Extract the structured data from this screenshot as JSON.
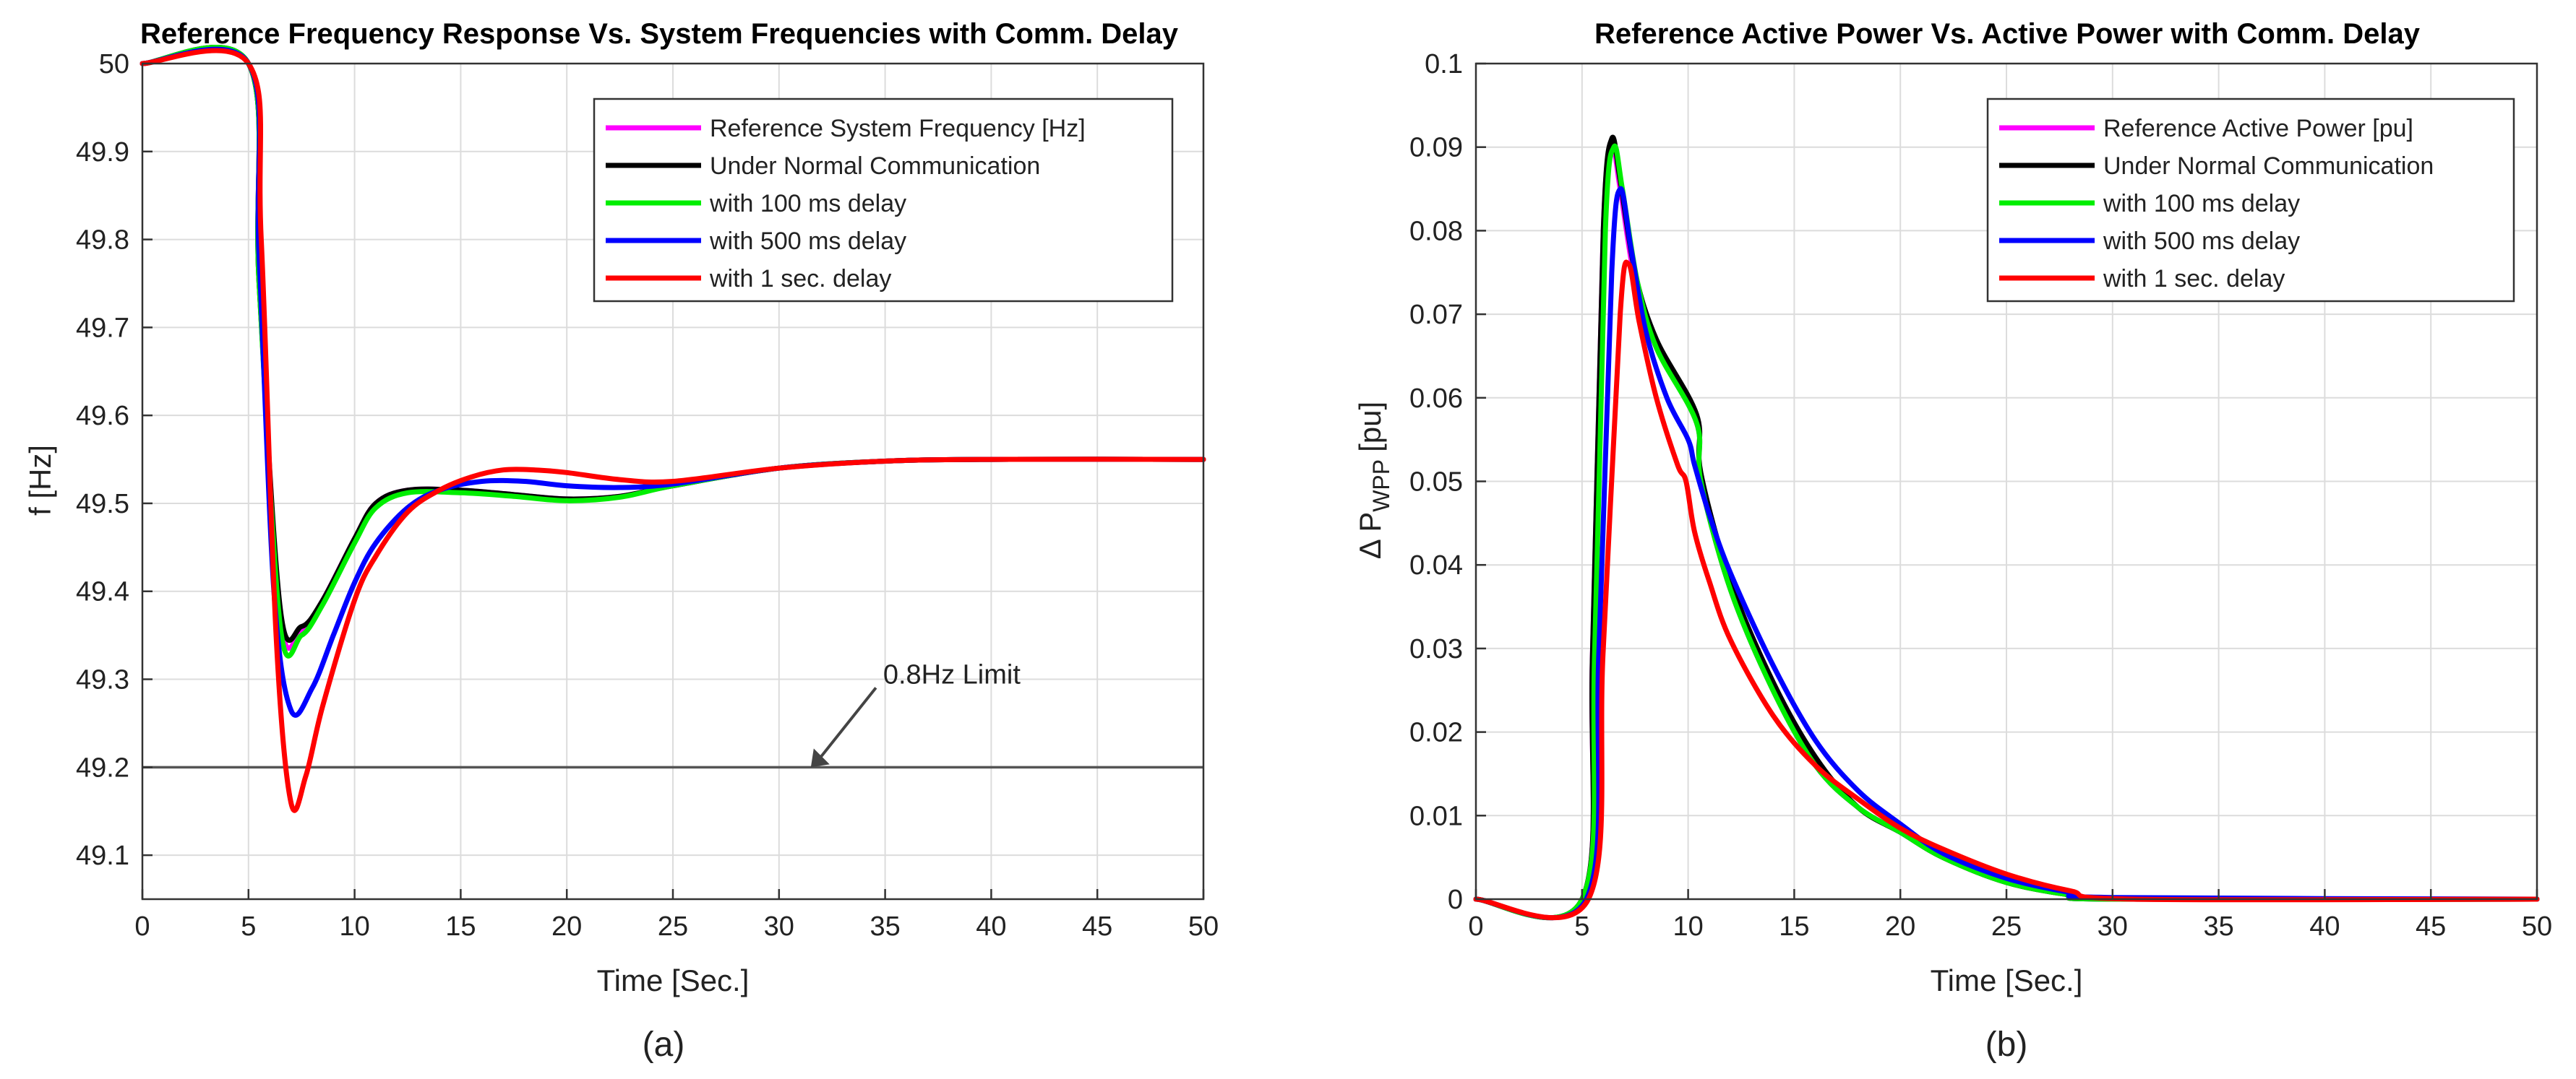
{
  "chart_data": [
    {
      "type": "line",
      "panel_label": "(a)",
      "title": "Reference Frequency Response Vs. System Frequencies with Comm. Delay",
      "xlabel": "Time [Sec.]",
      "ylabel": "f [Hz]",
      "xlim": [
        0,
        50
      ],
      "ylim": [
        49.05,
        50
      ],
      "xticks": [
        0,
        5,
        10,
        15,
        20,
        25,
        30,
        35,
        40,
        45,
        50
      ],
      "yticks": [
        49.1,
        49.2,
        49.3,
        49.4,
        49.5,
        49.6,
        49.7,
        49.8,
        49.9,
        50
      ],
      "ytick_labels": [
        "49.1",
        "49.2",
        "49.3",
        "49.4",
        "49.5",
        "49.6",
        "49.7",
        "49.8",
        "49.9",
        "50"
      ],
      "grid": true,
      "legend_position": "top-right",
      "reference_line": {
        "y": 49.2,
        "color": "#555555"
      },
      "annotation": {
        "text": "0.8Hz Limit",
        "x": 31.5,
        "y": 49.2
      },
      "series": [
        {
          "name": "Reference System Frequency [Hz]",
          "color": "#ff00ff",
          "x": [
            0,
            5,
            5.5,
            6.5,
            7.5,
            8.5,
            10,
            11,
            12.5,
            15,
            17.5,
            20,
            22.5,
            25,
            30,
            35,
            40,
            50
          ],
          "y": [
            50,
            50,
            49.75,
            49.37,
            49.355,
            49.39,
            49.46,
            49.5,
            49.515,
            49.515,
            49.51,
            49.505,
            49.508,
            49.52,
            49.54,
            49.548,
            49.55,
            49.55
          ]
        },
        {
          "name": "Under Normal Communication",
          "color": "#000000",
          "x": [
            0,
            5,
            5.5,
            6.5,
            7.5,
            8.5,
            10,
            11,
            12.5,
            15,
            17.5,
            20,
            22.5,
            25,
            30,
            35,
            40,
            50
          ],
          "y": [
            50,
            50,
            49.75,
            49.38,
            49.36,
            49.39,
            49.46,
            49.5,
            49.515,
            49.515,
            49.51,
            49.505,
            49.508,
            49.52,
            49.54,
            49.548,
            49.55,
            49.55
          ]
        },
        {
          "name": "with 100 ms delay",
          "color": "#00ee00",
          "x": [
            0,
            5,
            5.5,
            6.5,
            7.5,
            8.5,
            10,
            11,
            12.5,
            15,
            17.5,
            20,
            22.5,
            25,
            30,
            35,
            40,
            50
          ],
          "y": [
            50,
            50,
            49.75,
            49.36,
            49.35,
            49.385,
            49.455,
            49.495,
            49.512,
            49.512,
            49.508,
            49.503,
            49.507,
            49.52,
            49.54,
            49.548,
            49.55,
            49.55
          ]
        },
        {
          "name": "with 500 ms delay",
          "color": "#0000ff",
          "x": [
            0,
            5,
            5.5,
            6.2,
            7,
            8,
            9,
            10,
            11,
            12.5,
            14,
            16,
            18,
            20,
            22.5,
            25,
            30,
            35,
            40,
            50
          ],
          "y": [
            50,
            50,
            49.78,
            49.4,
            49.265,
            49.29,
            49.35,
            49.41,
            49.455,
            49.495,
            49.515,
            49.525,
            49.525,
            49.52,
            49.518,
            49.522,
            49.54,
            49.548,
            49.55,
            49.55
          ]
        },
        {
          "name": "with 1 sec. delay",
          "color": "#ff0000",
          "x": [
            0,
            5,
            5.6,
            6.3,
            7,
            7.7,
            8.5,
            10,
            11,
            12.5,
            14,
            15.5,
            17,
            18.5,
            20,
            22.5,
            25,
            30,
            35,
            40,
            50
          ],
          "y": [
            50,
            50,
            49.8,
            49.35,
            49.16,
            49.19,
            49.27,
            49.39,
            49.44,
            49.49,
            49.515,
            49.53,
            49.538,
            49.538,
            49.535,
            49.527,
            49.525,
            49.54,
            49.548,
            49.55,
            49.55
          ]
        }
      ]
    },
    {
      "type": "line",
      "panel_label": "(b)",
      "title": "Reference Active Power Vs. Active Power with Comm. Delay",
      "xlabel": "Time [Sec.]",
      "ylabel_main": "Δ P",
      "ylabel_sub": "WPP",
      "ylabel_unit": "[pu]",
      "xlim": [
        0,
        50
      ],
      "ylim": [
        0,
        0.1
      ],
      "xticks": [
        0,
        5,
        10,
        15,
        20,
        25,
        30,
        35,
        40,
        45,
        50
      ],
      "yticks": [
        0,
        0.01,
        0.02,
        0.03,
        0.04,
        0.05,
        0.06,
        0.07,
        0.08,
        0.09,
        0.1
      ],
      "ytick_labels": [
        "0",
        "0.01",
        "0.02",
        "0.03",
        "0.04",
        "0.05",
        "0.06",
        "0.07",
        "0.08",
        "0.09",
        "0.1"
      ],
      "grid": true,
      "legend_position": "top-right",
      "series": [
        {
          "name": "Reference Active Power [pu]",
          "color": "#ff00ff",
          "x": [
            0,
            5,
            5.5,
            6,
            6.4,
            6.8,
            7.5,
            8.5,
            10.4,
            10.6,
            12,
            14,
            16,
            18,
            20,
            22,
            25,
            28,
            30,
            50
          ],
          "y": [
            0,
            0,
            0.03,
            0.08,
            0.09,
            0.085,
            0.074,
            0.066,
            0.057,
            0.05,
            0.037,
            0.025,
            0.016,
            0.011,
            0.008,
            0.005,
            0.002,
            0.0005,
            0,
            0
          ]
        },
        {
          "name": "Under Normal Communication",
          "color": "#000000",
          "x": [
            0,
            5,
            5.5,
            6,
            6.4,
            6.8,
            7.5,
            8.5,
            10.4,
            10.6,
            12,
            14,
            16,
            18,
            20,
            22,
            25,
            28,
            30,
            50
          ],
          "y": [
            0,
            0,
            0.03,
            0.08,
            0.091,
            0.086,
            0.075,
            0.067,
            0.058,
            0.051,
            0.038,
            0.026,
            0.017,
            0.011,
            0.008,
            0.005,
            0.002,
            0.0005,
            0,
            0
          ]
        },
        {
          "name": "with 100 ms delay",
          "color": "#00ee00",
          "x": [
            0,
            5,
            5.6,
            6.1,
            6.5,
            6.9,
            7.6,
            8.5,
            10.4,
            10.6,
            12,
            14,
            16,
            18,
            20,
            22,
            25,
            28,
            30,
            50
          ],
          "y": [
            0,
            0,
            0.03,
            0.08,
            0.09,
            0.085,
            0.074,
            0.066,
            0.057,
            0.05,
            0.037,
            0.025,
            0.016,
            0.011,
            0.008,
            0.005,
            0.002,
            0.0005,
            0,
            0
          ]
        },
        {
          "name": "with 500 ms delay",
          "color": "#0000ff",
          "x": [
            0,
            5.2,
            5.8,
            6.4,
            6.8,
            7.3,
            8,
            9,
            10,
            10.3,
            11,
            12,
            14,
            16,
            18,
            20,
            22,
            25,
            28,
            30,
            50
          ],
          "y": [
            0,
            0,
            0.03,
            0.075,
            0.085,
            0.078,
            0.068,
            0.06,
            0.055,
            0.052,
            0.046,
            0.039,
            0.028,
            0.019,
            0.013,
            0.009,
            0.0055,
            0.0025,
            0.0008,
            0.0002,
            0
          ]
        },
        {
          "name": "with 1 sec. delay",
          "color": "#ff0000",
          "x": [
            0,
            5.3,
            6,
            6.8,
            7.2,
            7.7,
            8.5,
            9.5,
            9.9,
            10.3,
            11,
            12,
            14,
            16,
            18,
            20,
            22,
            25,
            28,
            31,
            50
          ],
          "y": [
            0,
            0,
            0.03,
            0.07,
            0.076,
            0.069,
            0.06,
            0.052,
            0.05,
            0.044,
            0.038,
            0.031,
            0.022,
            0.016,
            0.012,
            0.0085,
            0.006,
            0.003,
            0.001,
            0,
            0
          ]
        }
      ]
    }
  ]
}
